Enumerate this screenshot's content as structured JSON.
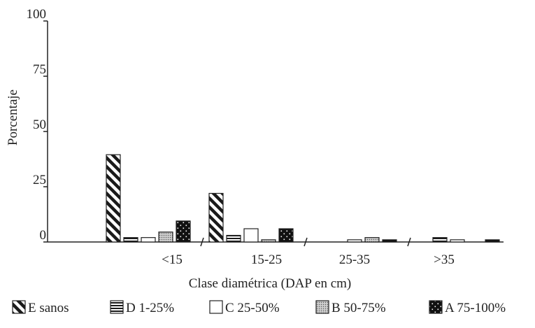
{
  "chart_data": {
    "type": "bar",
    "ylabel": "Porcentaje",
    "xlabel": "Clase diamétrica (DAP en cm)",
    "ylim": [
      0,
      100
    ],
    "yticks": [
      0,
      25,
      50,
      75,
      100
    ],
    "categories": [
      "<15",
      "15-25",
      "25-35",
      ">35"
    ],
    "legend_position": "bottom",
    "series": [
      {
        "name": "E sanos",
        "pattern": "hatch",
        "values": [
          39.5,
          22,
          0,
          0
        ]
      },
      {
        "name": "D 1-25%",
        "pattern": "stripes",
        "values": [
          2,
          3,
          0,
          2
        ]
      },
      {
        "name": "C 25-50%",
        "pattern": "empty",
        "values": [
          2,
          6,
          1,
          1
        ]
      },
      {
        "name": "B 50-75%",
        "pattern": "dots",
        "values": [
          4.5,
          1,
          2,
          0
        ]
      },
      {
        "name": "A 75-100%",
        "pattern": "black",
        "values": [
          9.5,
          6,
          1,
          1
        ]
      }
    ]
  }
}
